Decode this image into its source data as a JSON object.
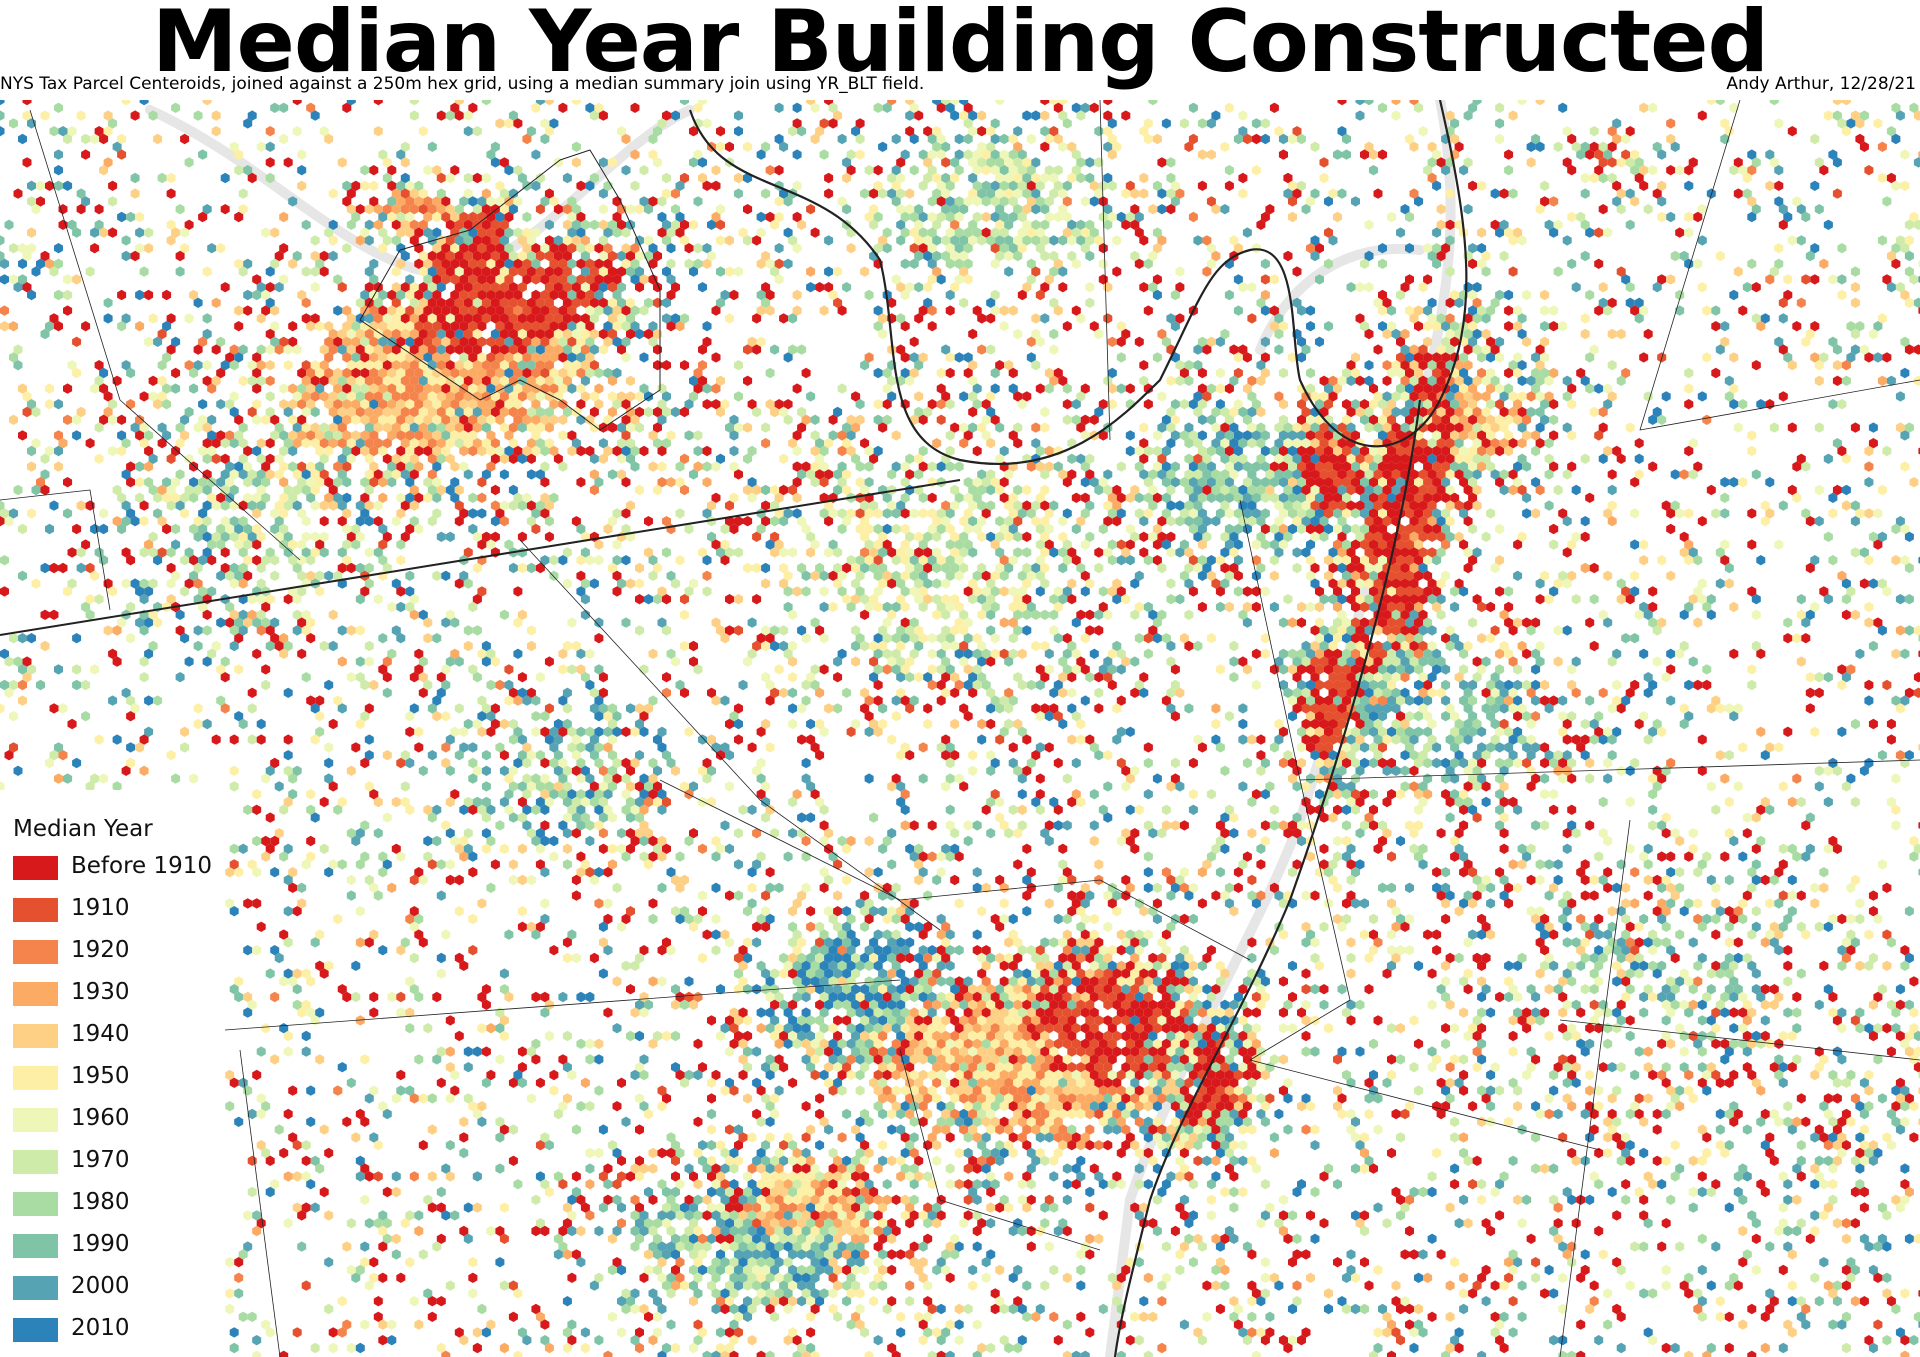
{
  "title": "Median Year Building Constructed",
  "subtitle": "NYS Tax Parcel Centeroids, joined against a 250m hex grid, using a median summary join using YR_BLT field.",
  "credit": "Andy Arthur, 12/28/21",
  "legend": {
    "title": "Median Year",
    "items": [
      {
        "label": "Before 1910",
        "color": "#d7191c"
      },
      {
        "label": "1910",
        "color": "#e5502e"
      },
      {
        "label": "1920",
        "color": "#f4844b"
      },
      {
        "label": "1930",
        "color": "#fbab64"
      },
      {
        "label": "1940",
        "color": "#fdd086"
      },
      {
        "label": "1950",
        "color": "#fdf0a6"
      },
      {
        "label": "1960",
        "color": "#eef7b8"
      },
      {
        "label": "1970",
        "color": "#cfebaa"
      },
      {
        "label": "1980",
        "color": "#a9dca3"
      },
      {
        "label": "1990",
        "color": "#80c4a8"
      },
      {
        "label": "2000",
        "color": "#56a3b4"
      },
      {
        "label": "2010",
        "color": "#2b83ba"
      }
    ]
  },
  "map_colors": {
    "water": "#e6e6e6",
    "boundary": "#222222",
    "background": "#ffffff"
  }
}
